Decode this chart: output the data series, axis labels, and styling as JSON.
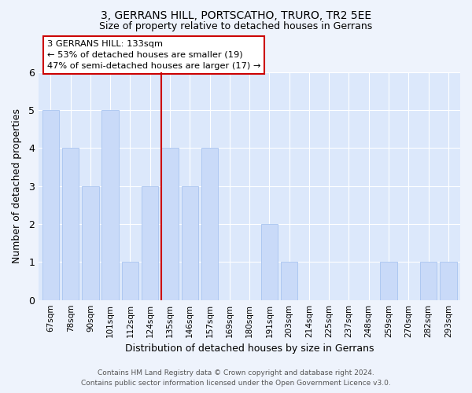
{
  "title": "3, GERRANS HILL, PORTSCATHO, TRURO, TR2 5EE",
  "subtitle": "Size of property relative to detached houses in Gerrans",
  "xlabel": "Distribution of detached houses by size in Gerrans",
  "ylabel": "Number of detached properties",
  "categories": [
    "67sqm",
    "78sqm",
    "90sqm",
    "101sqm",
    "112sqm",
    "124sqm",
    "135sqm",
    "146sqm",
    "157sqm",
    "169sqm",
    "180sqm",
    "191sqm",
    "203sqm",
    "214sqm",
    "225sqm",
    "237sqm",
    "248sqm",
    "259sqm",
    "270sqm",
    "282sqm",
    "293sqm"
  ],
  "values": [
    5,
    4,
    3,
    5,
    1,
    3,
    4,
    3,
    4,
    0,
    0,
    2,
    1,
    0,
    0,
    0,
    0,
    1,
    0,
    1,
    1
  ],
  "highlight_index": 6,
  "bar_color": "#c9daf8",
  "bar_edge_color": "#a8c4f0",
  "highlight_line_color": "#cc0000",
  "ylim": [
    0,
    6
  ],
  "yticks": [
    0,
    1,
    2,
    3,
    4,
    5,
    6
  ],
  "annotation_title": "3 GERRANS HILL: 133sqm",
  "annotation_line1": "← 53% of detached houses are smaller (19)",
  "annotation_line2": "47% of semi-detached houses are larger (17) →",
  "footer_line1": "Contains HM Land Registry data © Crown copyright and database right 2024.",
  "footer_line2": "Contains public sector information licensed under the Open Government Licence v3.0.",
  "grid_color": "#ffffff",
  "bg_color": "#dce8fb",
  "fig_bg_color": "#eef3fc"
}
